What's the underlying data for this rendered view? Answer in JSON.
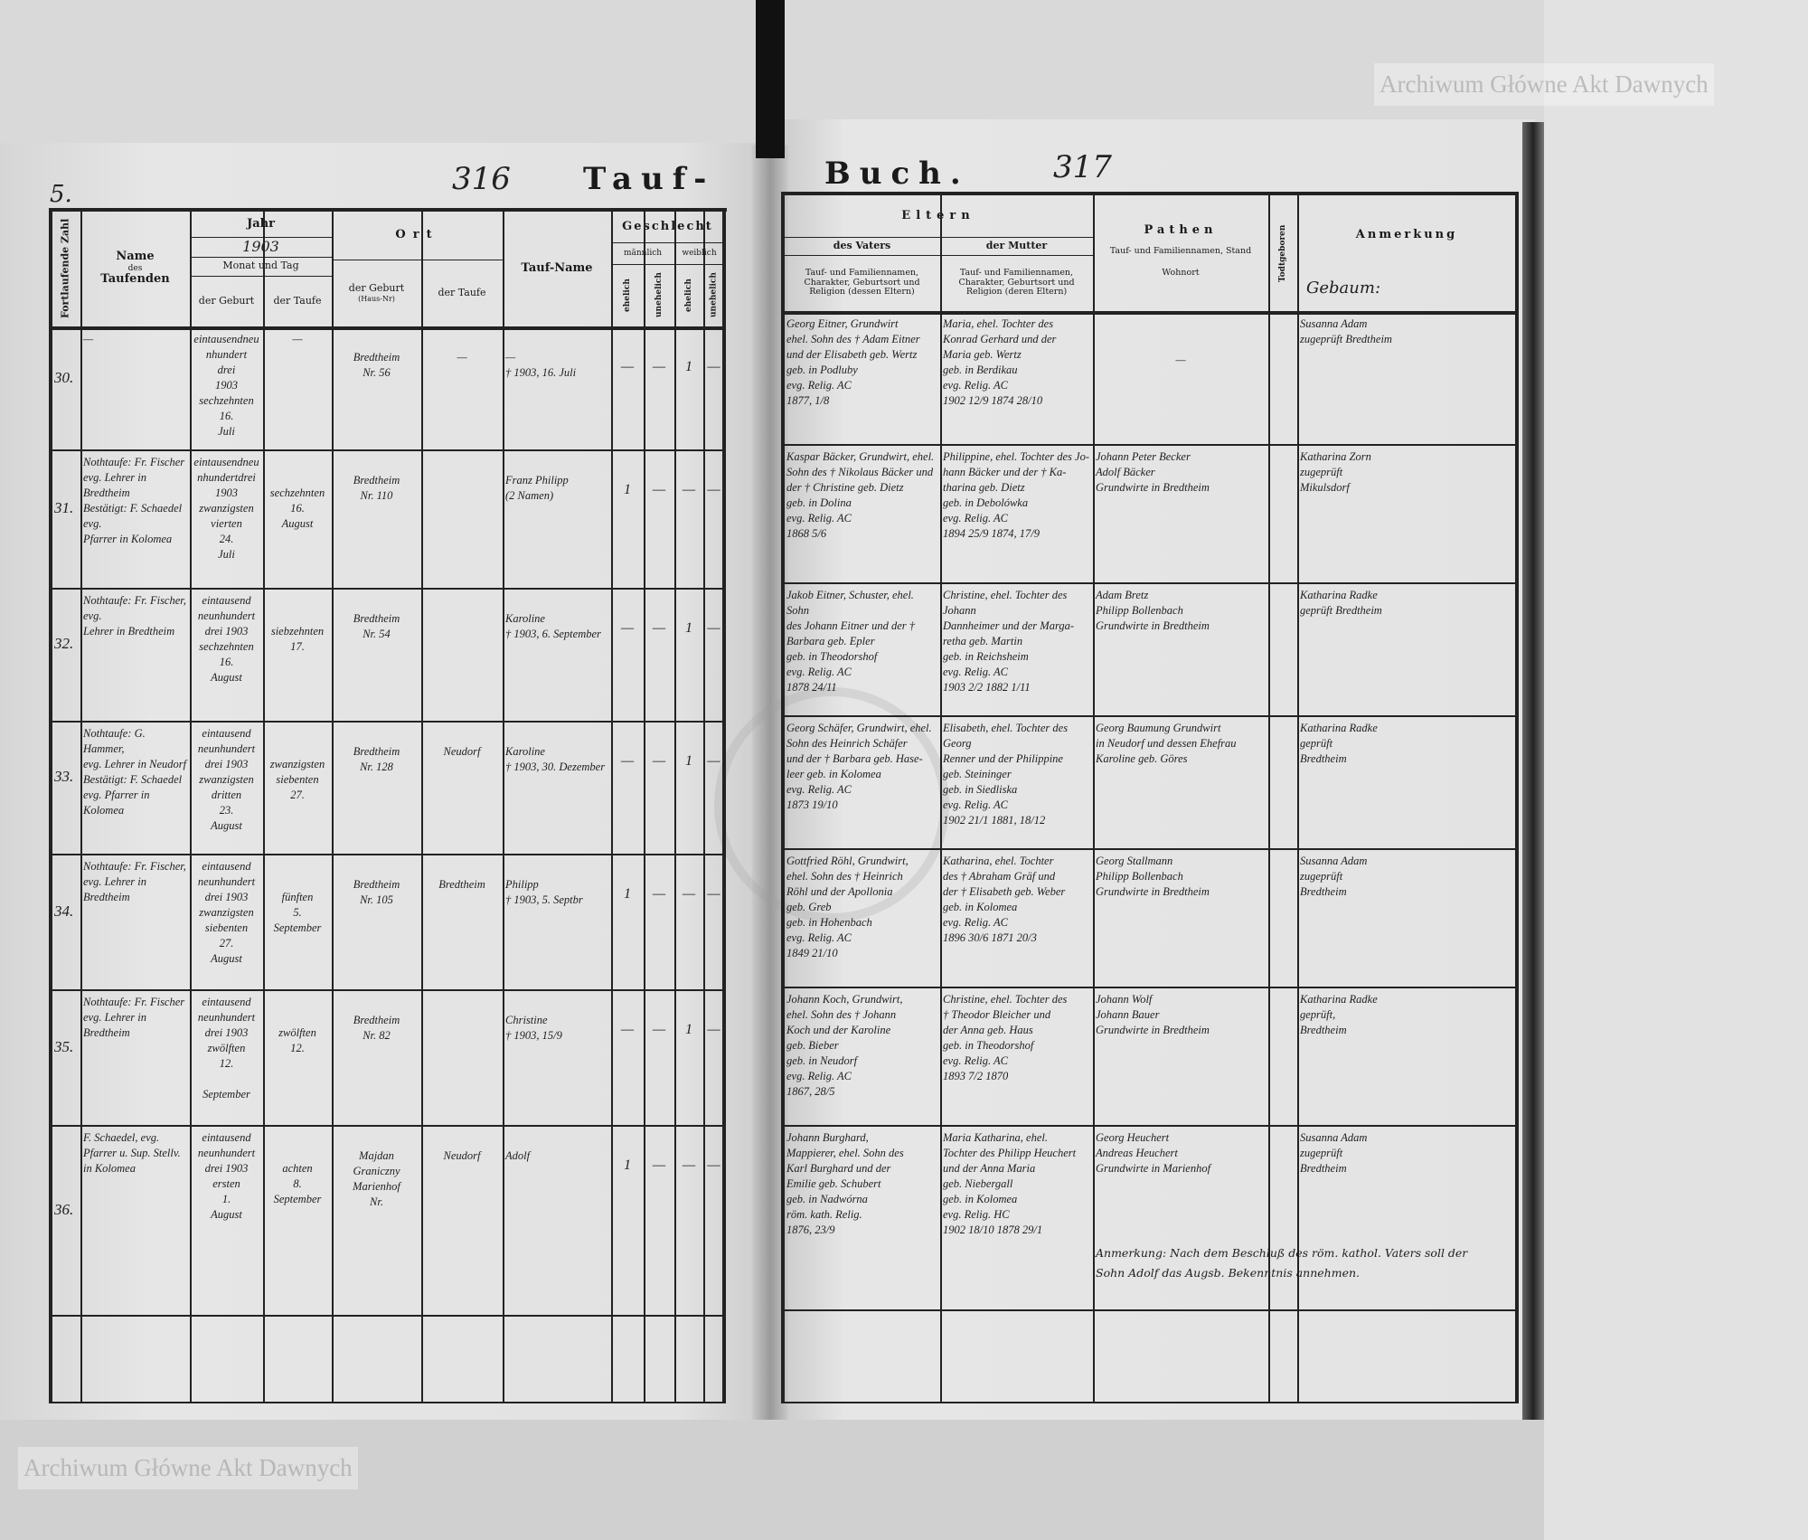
{
  "page_marks": {
    "left_mark": "5.",
    "left_page_no": "316",
    "right_page_no": "317",
    "title_left": "Tauf-",
    "title_right": "Buch."
  },
  "watermark": {
    "text": "Archiwum Główne Akt Dawnych"
  },
  "left_header": {
    "running_no": "Fortlaufende Zahl",
    "name": [
      "Name",
      "des",
      "Taufenden"
    ],
    "year": "Jahr",
    "year_value": "1903",
    "month_day": "Monat und Tag",
    "of_birth": "der Geburt",
    "of_baptism": "der Taufe",
    "place": "Ort",
    "place_birth": "der Geburt",
    "place_birth_sub": "(Haus-Nr)",
    "place_baptism": "der Taufe",
    "baptismal_name": "Tauf-Name",
    "sex": "Geschlecht",
    "male": "männlich",
    "female": "weiblich",
    "legit": "ehelich",
    "illegit": "unehelich"
  },
  "right_header": {
    "parents": "Eltern",
    "father": "des Vaters",
    "mother": "der Mutter",
    "father_desc": "Tauf- und Familiennamen, Charakter, Geburtsort und Religion (dessen Eltern)",
    "mother_desc": "Tauf- und Familiennamen, Charakter, Geburtsort und Religion (deren Eltern)",
    "godparents": "Pathen",
    "godparents_desc": "Tauf- und Familiennamen, Stand",
    "godparents_residence": "Wohnort",
    "stillborn": "Todtgeboren",
    "remark": "Anmerkung",
    "remark_handwritten": "Gebaum:"
  },
  "rows": [
    {
      "no": "30.",
      "name": [
        "—"
      ],
      "birth": [
        "eintausendneunhundert",
        "drei",
        "1903",
        "sechzehnten",
        "16.",
        "Juli"
      ],
      "baptism": [
        "—"
      ],
      "birthplace": [
        "Bredtheim",
        "Nr. 56"
      ],
      "baptplace": [
        "—"
      ],
      "taufname": [
        "—",
        "† 1903, 16. Juli"
      ],
      "sex": [
        "—",
        "—",
        "1",
        "—"
      ],
      "father": [
        "Georg Eitner, Grundwirt",
        "ehel. Sohn des † Adam Eitner",
        "und der Elisabeth geb. Wertz",
        "geb. in Podluby",
        "evg. Relig. AC",
        "1877, 1/8"
      ],
      "mother": [
        "Maria, ehel. Tochter des",
        "Konrad Gerhard und der",
        "Maria geb. Wertz",
        "geb. in Berdikau",
        "evg. Relig. AC",
        "1902 12/9  1874 28/10"
      ],
      "godparents": [
        "—"
      ],
      "remark": [
        "Susanna Adam",
        "zugeprüft Bredtheim"
      ]
    },
    {
      "no": "31.",
      "name": [
        "Nothtaufe: Fr. Fischer",
        "evg. Lehrer in Bredtheim",
        "Bestätigt: F. Schaedel evg.",
        "Pfarrer in Kolomea"
      ],
      "birth": [
        "eintausendneunhundertdrei",
        "1903",
        "zwanzigsten",
        "vierten",
        "24.",
        "Juli"
      ],
      "baptism": [
        "",
        "",
        "sechzehnten",
        "16.",
        "August"
      ],
      "birthplace": [
        "Bredtheim",
        "Nr. 110"
      ],
      "baptplace": [],
      "taufname": [
        "Franz Philipp",
        "(2 Namen)"
      ],
      "sex": [
        "1",
        "—",
        "—",
        "—"
      ],
      "father": [
        "Kaspar Bäcker, Grundwirt, ehel.",
        "Sohn des † Nikolaus Bäcker und",
        "der † Christine geb. Dietz",
        "geb. in Dolina",
        "evg. Relig. AC",
        "1868 5/6"
      ],
      "mother": [
        "Philippine, ehel. Tochter des Jo-",
        "hann Bäcker und der † Ka-",
        "tharina geb. Dietz",
        "geb. in Debolówka",
        "evg. Relig. AC",
        "1894 25/9  1874, 17/9"
      ],
      "godparents": [
        "Johann Peter Becker",
        "Adolf Bäcker",
        "Grundwirte in Bredtheim"
      ],
      "remark": [
        "Katharina Zorn",
        "zugeprüft",
        "Mikulsdorf"
      ]
    },
    {
      "no": "32.",
      "name": [
        "Nothtaufe: Fr. Fischer, evg.",
        "Lehrer in Bredtheim"
      ],
      "birth": [
        "eintausend neunhundert",
        "drei 1903",
        "sechzehnten",
        "16.",
        "August"
      ],
      "baptism": [
        "",
        "",
        "siebzehnten",
        "17."
      ],
      "birthplace": [
        "Bredtheim",
        "Nr. 54"
      ],
      "baptplace": [],
      "taufname": [
        "Karoline",
        "† 1903, 6. September"
      ],
      "sex": [
        "—",
        "—",
        "1",
        "—"
      ],
      "father": [
        "Jakob Eitner, Schuster, ehel. Sohn",
        "des Johann Eitner und der †",
        "Barbara geb. Epler",
        "geb. in Theodorshof",
        "evg. Relig. AC",
        "1878 24/11"
      ],
      "mother": [
        "Christine, ehel. Tochter des Johann",
        "Dannheimer und der Marga-",
        "retha geb. Martin",
        "geb. in Reichsheim",
        "evg. Relig. AC",
        "1903 2/2  1882 1/11"
      ],
      "godparents": [
        "Adam Bretz",
        "Philipp Bollenbach",
        "Grundwirte in Bredtheim"
      ],
      "remark": [
        "Katharina Radke",
        "geprüft Bredtheim"
      ]
    },
    {
      "no": "33.",
      "name": [
        "Nothtaufe: G. Hammer,",
        "evg. Lehrer in Neudorf",
        "Bestätigt: F. Schaedel",
        "evg. Pfarrer in",
        "Kolomea"
      ],
      "birth": [
        "eintausend neunhundert",
        "drei 1903",
        "zwanzigsten",
        "dritten",
        "23.",
        "August"
      ],
      "baptism": [
        "",
        "",
        "zwanzigsten",
        "siebenten",
        "27."
      ],
      "birthplace": [
        "Bredtheim",
        "Nr. 128"
      ],
      "baptplace": [
        "Neudorf"
      ],
      "taufname": [
        "Karoline",
        "† 1903, 30. Dezember"
      ],
      "sex": [
        "—",
        "—",
        "1",
        "—"
      ],
      "father": [
        "Georg Schäfer, Grundwirt, ehel.",
        "Sohn des Heinrich Schäfer",
        "und der † Barbara geb. Hase-",
        "leer geb. in Kolomea",
        "evg. Relig. AC",
        "1873 19/10"
      ],
      "mother": [
        "Elisabeth, ehel. Tochter des Georg",
        "Renner und der Philippine",
        "geb. Steininger",
        "geb. in Siedliska",
        "evg. Relig. AC",
        "1902 21/1  1881, 18/12"
      ],
      "godparents": [
        "Georg Baumung Grundwirt",
        "in Neudorf und dessen Ehefrau",
        "Karoline geb. Göres"
      ],
      "remark": [
        "Katharina Radke",
        "geprüft",
        "Bredtheim"
      ]
    },
    {
      "no": "34.",
      "name": [
        "Nothtaufe: Fr. Fischer,",
        "evg. Lehrer in",
        "Bredtheim"
      ],
      "birth": [
        "eintausend neunhundert",
        "drei 1903",
        "zwanzigsten",
        "siebenten",
        "27.",
        "August"
      ],
      "baptism": [
        "",
        "",
        "fünften",
        "5.",
        "September"
      ],
      "birthplace": [
        "Bredtheim",
        "Nr. 105"
      ],
      "baptplace": [
        "Bredtheim"
      ],
      "taufname": [
        "Philipp",
        "† 1903, 5. Septbr"
      ],
      "sex": [
        "1",
        "—",
        "—",
        "—"
      ],
      "father": [
        "Gottfried Röhl, Grundwirt,",
        "ehel. Sohn des † Heinrich",
        "Röhl und der Apollonia",
        "geb. Greb",
        "geb. in Hohenbach",
        "evg. Relig. AC",
        "1849 21/10"
      ],
      "mother": [
        "Katharina, ehel. Tochter",
        "des † Abraham Gräf und",
        "der † Elisabeth geb. Weber",
        "geb. in Kolomea",
        "evg. Relig. AC",
        "1896 30/6  1871 20/3"
      ],
      "godparents": [
        "Georg Stallmann",
        "Philipp Bollenbach",
        "Grundwirte in Bredtheim"
      ],
      "remark": [
        "Susanna Adam",
        "zugeprüft",
        "Bredtheim"
      ]
    },
    {
      "no": "35.",
      "name": [
        "Nothtaufe: Fr. Fischer",
        "evg. Lehrer in",
        "Bredtheim"
      ],
      "birth": [
        "eintausend neunhundert",
        "drei 1903",
        "zwölften",
        "12.",
        "",
        "September"
      ],
      "baptism": [
        "",
        "",
        "zwölften",
        "12."
      ],
      "birthplace": [
        "Bredtheim",
        "Nr. 82"
      ],
      "baptplace": [],
      "taufname": [
        "Christine",
        "† 1903, 15/9"
      ],
      "sex": [
        "—",
        "—",
        "1",
        "—"
      ],
      "father": [
        "Johann Koch, Grundwirt,",
        "ehel. Sohn des † Johann",
        "Koch und der Karoline",
        "geb. Bieber",
        "geb. in Neudorf",
        "evg. Relig. AC",
        "1867, 28/5"
      ],
      "mother": [
        "Christine, ehel. Tochter des",
        "† Theodor Bleicher und",
        "der Anna geb. Haus",
        "geb. in Theodorshof",
        "evg. Relig. AC",
        "1893 7/2  1870"
      ],
      "godparents": [
        "Johann Wolf",
        "Johann Bauer",
        "Grundwirte in Bredtheim"
      ],
      "remark": [
        "Katharina Radke",
        "geprüft,",
        "Bredtheim"
      ]
    },
    {
      "no": "36.",
      "name": [
        "F. Schaedel, evg.",
        "Pfarrer u. Sup. Stellv.",
        "in Kolomea"
      ],
      "birth": [
        "eintausend neunhundert",
        "drei 1903",
        "ersten",
        "1.",
        "August"
      ],
      "baptism": [
        "",
        "",
        "achten",
        "8.",
        "September"
      ],
      "birthplace": [
        "Majdan",
        "Graniczny",
        "Marienhof",
        "Nr."
      ],
      "baptplace": [
        "Neudorf"
      ],
      "taufname": [
        "Adolf"
      ],
      "sex": [
        "1",
        "—",
        "—",
        "—"
      ],
      "father": [
        "Johann Burghard,",
        "Mappierer, ehel. Sohn des",
        "Karl Burghard und der",
        "Emilie geb. Schubert",
        "geb. in Nadwórna",
        "röm. kath. Relig.",
        "1876, 23/9"
      ],
      "mother": [
        "Maria Katharina, ehel.",
        "Tochter des Philipp Heuchert",
        "und der Anna Maria",
        "geb. Niebergall",
        "geb. in Kolomea",
        "evg. Relig. HC",
        "1902 18/10  1878 29/1"
      ],
      "godparents": [
        "Georg Heuchert",
        "Andreas Heuchert",
        "Grundwirte in Marienhof"
      ],
      "remark": [
        "Susanna Adam",
        "zugeprüft",
        "Bredtheim"
      ]
    }
  ],
  "row36_note": [
    "Anmerkung: Nach dem Beschluß des röm. kathol. Vaters soll der",
    "Sohn Adolf das Augsb. Bekenntnis annehmen."
  ]
}
